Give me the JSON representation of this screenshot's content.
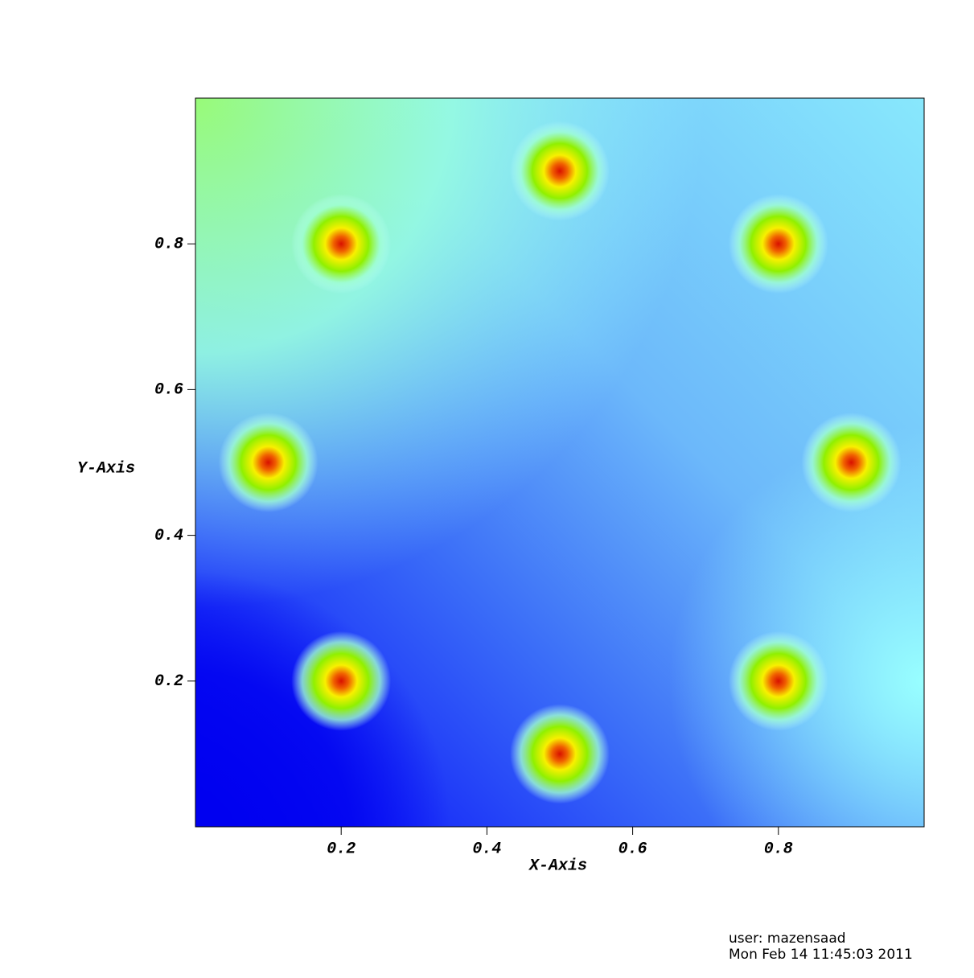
{
  "chart_data": {
    "type": "pseudocolor",
    "x_label": "X-Axis",
    "y_label": "Y-Axis",
    "x": [
      0.5,
      0.2,
      0.8,
      0.1,
      0.9,
      0.2,
      0.8,
      0.5
    ],
    "y": [
      0.9,
      0.8,
      0.8,
      0.5,
      0.5,
      0.2,
      0.2,
      0.1
    ],
    "xlim": [
      0,
      1
    ],
    "ylim": [
      0,
      1
    ],
    "xticks": [
      0.2,
      0.4,
      0.6,
      0.8
    ],
    "yticks": [
      0.2,
      0.4,
      0.6,
      0.8
    ]
  },
  "footer": {
    "user": "user: mazensaad",
    "date": "Mon Feb 14 11:45:03 2011"
  }
}
